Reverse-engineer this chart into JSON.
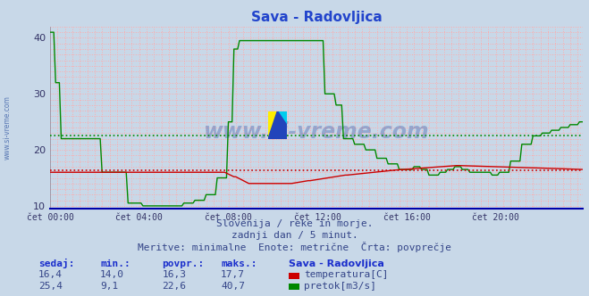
{
  "title": "Sava - Radovljica",
  "title_color": "#2244cc",
  "bg_color": "#c8d8e8",
  "plot_bg_color": "#c8d8e8",
  "grid_color": "#ffaaaa",
  "xmin": 0,
  "xmax": 287,
  "ylim": [
    9.5,
    42
  ],
  "yticks": [
    10,
    20,
    30,
    40
  ],
  "xtick_labels": [
    "čet 00:00",
    "čet 04:00",
    "čet 08:00",
    "čet 12:00",
    "čet 16:00",
    "čet 20:00"
  ],
  "xtick_positions": [
    0,
    48,
    96,
    144,
    192,
    240
  ],
  "temp_color": "#cc0000",
  "flow_color": "#008800",
  "temp_avg": 16.3,
  "flow_avg": 22.6,
  "watermark_text": "www.si-vreme.com",
  "sub_text1": "Slovenija / reke in morje.",
  "sub_text2": "zadnji dan / 5 minut.",
  "sub_text3": "Meritve: minimalne  Enote: metrične  Črta: povprečje",
  "legend_title": "Sava - Radovljica",
  "table_headers": [
    "sedaj:",
    "min.:",
    "povpr.:",
    "maks.:"
  ],
  "temp_row": [
    "16,4",
    "14,0",
    "16,3",
    "17,7"
  ],
  "flow_row": [
    "25,4",
    "9,1",
    "22,6",
    "40,7"
  ],
  "temp_label": "temperatura[C]",
  "flow_label": "pretok[m3/s]",
  "left_label": "www.si-vreme.com"
}
